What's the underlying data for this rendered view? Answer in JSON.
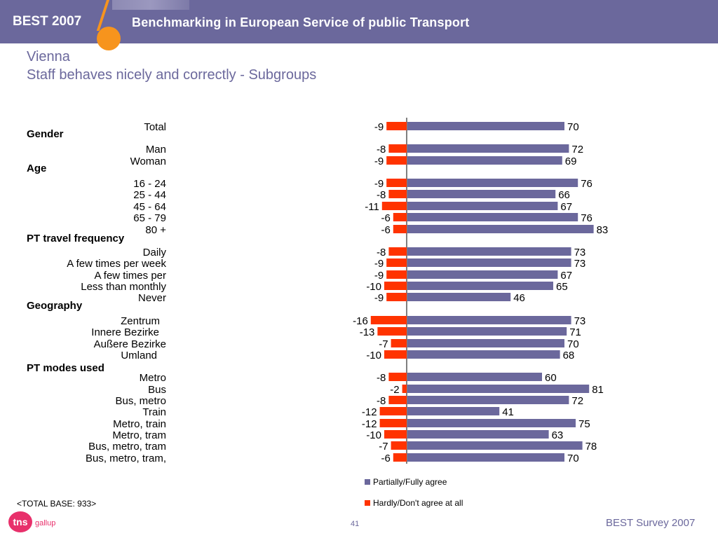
{
  "header": {
    "brand": "BEST 2007",
    "title": "Benchmarking in European Service of public Transport"
  },
  "slide": {
    "city": "Vienna",
    "subtitle": "Staff behaves nicely and correctly - Subgroups"
  },
  "colors": {
    "header_bg": "#6b689c",
    "agree": "#6b689c",
    "disagree": "#ff3300",
    "accent": "#f7941d"
  },
  "chart_data": {
    "type": "bar",
    "orientation": "horizontal",
    "groups": [
      "Gender",
      "Age",
      "PT travel frequency",
      "Geography",
      "PT modes used"
    ],
    "categories": [
      "Total",
      "Man",
      "Woman",
      "16 - 24",
      "25 - 44",
      "45 - 64",
      "65 - 79",
      "80 +",
      "Daily",
      "A few times per week",
      "A few times per",
      "Less than monthly",
      "Never",
      "Zentrum",
      "Innere Bezirke",
      "Außere Bezirke",
      "Umland",
      "Metro",
      "Bus",
      "Bus, metro",
      "Train",
      "Metro, train",
      "Metro, tram",
      "Bus, metro, tram",
      "Bus, metro, tram,"
    ],
    "series": [
      {
        "name": "Partially/Fully agree",
        "color": "#6b689c",
        "values": [
          70,
          72,
          69,
          76,
          66,
          67,
          76,
          83,
          73,
          73,
          67,
          65,
          46,
          73,
          71,
          70,
          68,
          60,
          81,
          72,
          41,
          75,
          63,
          78,
          70
        ]
      },
      {
        "name": "Hardly/Don't agree at all",
        "color": "#ff3300",
        "values": [
          -9,
          -8,
          -9,
          -9,
          -8,
          -11,
          -6,
          -6,
          -8,
          -9,
          -9,
          -10,
          -9,
          -16,
          -13,
          -7,
          -10,
          -8,
          -2,
          -8,
          -12,
          -12,
          -10,
          -7,
          -6
        ]
      }
    ],
    "legend_position": "bottom"
  },
  "footer": {
    "base_note": "<TOTAL BASE: 933>",
    "logo_text": "tns",
    "logo_sub": "gallup",
    "page_number": "41",
    "right_text": "BEST Survey 2007"
  }
}
